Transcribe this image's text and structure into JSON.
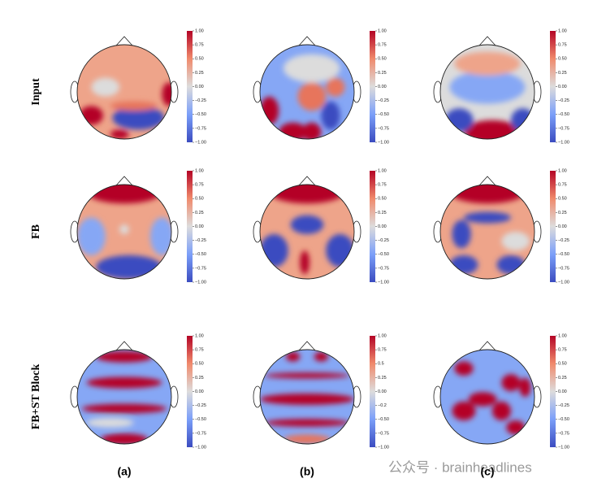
{
  "rows": [
    "Input",
    "FB",
    "FB+ST Block"
  ],
  "columns": [
    "(a)",
    "(b)",
    "(c)"
  ],
  "colorbars": [
    [
      "1.00",
      "0.75",
      "0.50",
      "0.25",
      "0.00",
      "−0.25",
      "−0.50",
      "−0.75",
      "−1.00"
    ],
    [
      "1.00",
      "0.75",
      "0.50",
      "0.25",
      "0.00",
      "−0.25",
      "−0.50",
      "−0.75",
      "−1.00"
    ],
    [
      "1.00",
      "0.75",
      "0.50",
      "0.25",
      "0.00",
      "−0.25",
      "−0.50",
      "−0.75",
      "−1.00"
    ],
    [
      "1.00",
      "0.75",
      "0.50",
      "0.25",
      "0.00",
      "−0.25",
      "−0.50",
      "−0.75",
      "−1.00"
    ],
    [
      "1.00",
      "0.75",
      "0.50",
      "0.25",
      "0.00",
      "−0.25",
      "−0.50",
      "−0.75",
      "−1.00"
    ],
    [
      "1.00",
      "0.75",
      "0.50",
      "0.25",
      "0.00",
      "−0.25",
      "−0.50",
      "−0.75",
      "−1.00"
    ],
    [
      "1.00",
      "0.75",
      "0.50",
      "0.25",
      "0.00",
      "−0.25",
      "−0.50",
      "−0.75",
      "−1.00"
    ],
    [
      "1.00",
      "0.75",
      "0.5",
      "0.25",
      "0.00",
      "−0.2",
      "−0.50",
      "−0.75",
      "−1.00"
    ],
    [
      "1.00",
      "0.75",
      "0.50",
      "0.25",
      "0.00",
      "−0.25",
      "−0.50",
      "−0.75",
      "−1.00"
    ]
  ],
  "watermark": "公众号 · brainheadlines"
}
